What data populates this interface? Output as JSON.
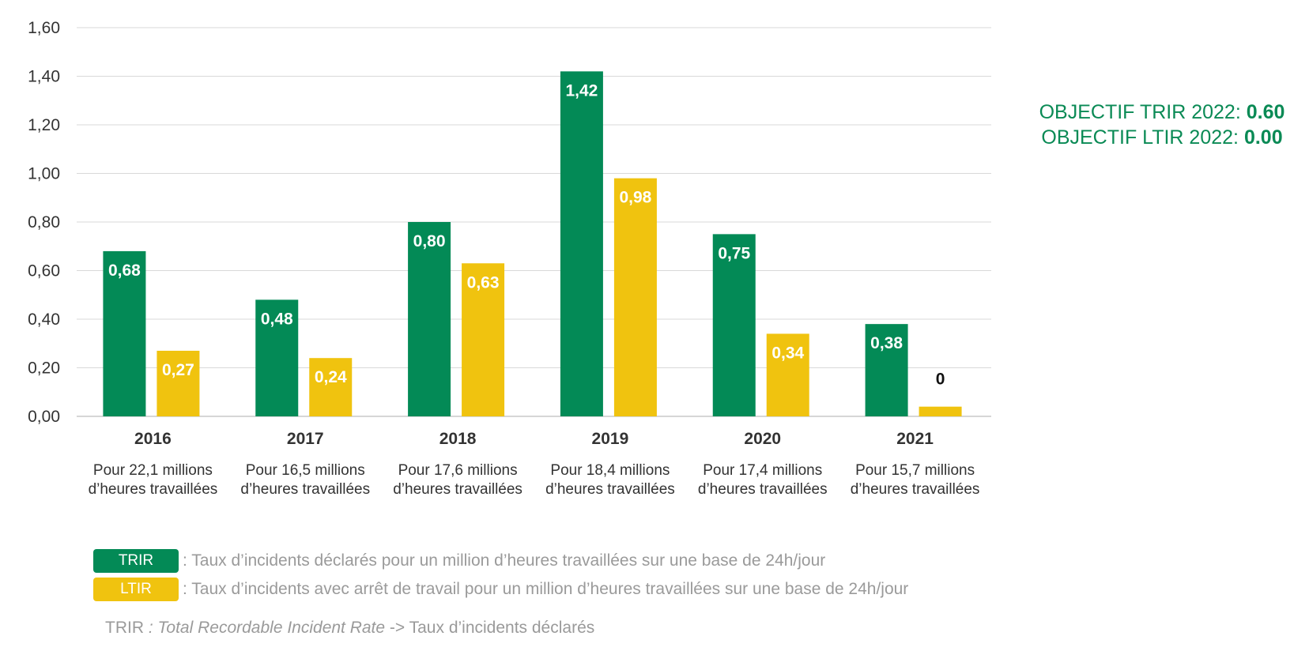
{
  "chart_data": {
    "type": "bar",
    "categories": [
      "2016",
      "2017",
      "2018",
      "2019",
      "2020",
      "2021"
    ],
    "category_sublabels": [
      [
        "Pour 22,1 millions",
        "d’heures travaillées"
      ],
      [
        "Pour 16,5 millions",
        "d’heures travaillées"
      ],
      [
        "Pour 17,6 millions",
        "d’heures travaillées"
      ],
      [
        "Pour 18,4 millions",
        "d’heures travaillées"
      ],
      [
        "Pour 17,4 millions",
        "d’heures travaillées"
      ],
      [
        "Pour 15,7 millions",
        "d’heures travaillées"
      ]
    ],
    "series": [
      {
        "name": "TRIR",
        "color": "#038a56",
        "values": [
          0.68,
          0.48,
          0.8,
          1.42,
          0.75,
          0.38
        ],
        "labels": [
          "0,68",
          "0,48",
          "0,80",
          "1,42",
          "0,75",
          "0,38"
        ]
      },
      {
        "name": "LTIR",
        "color": "#f0c30f",
        "values": [
          0.27,
          0.24,
          0.63,
          0.98,
          0.34,
          0.04
        ],
        "labels": [
          "0,27",
          "0,24",
          "0,63",
          "0,98",
          "0,34",
          "0"
        ]
      }
    ],
    "ylim": [
      0,
      1.6
    ],
    "yticks": [
      "0,00",
      "0,20",
      "0,40",
      "0,60",
      "0,80",
      "1,00",
      "1,20",
      "1,40",
      "1,60"
    ],
    "grid": true
  },
  "objectives": {
    "trir_label": "OBJECTIF TRIR 2022: ",
    "trir_value": "0.60",
    "ltir_label": "OBJECTIF LTIR 2022: ",
    "ltir_value": "0.00",
    "color": "#0a8a55"
  },
  "legend": {
    "trir_badge": "TRIR",
    "trir_text": ": Taux d’incidents déclarés pour un million d’heures travaillées sur une base de 24h/jour",
    "ltir_badge": "LTIR",
    "ltir_text": ": Taux d’incidents avec arrêt de travail pour un million d’heures travaillées sur une base de 24h/jour"
  },
  "footnote": {
    "prefix": "TRIR",
    "italic": " : Total Recordable Incident Rate",
    "suffix": " -> Taux d’incidents déclarés"
  }
}
